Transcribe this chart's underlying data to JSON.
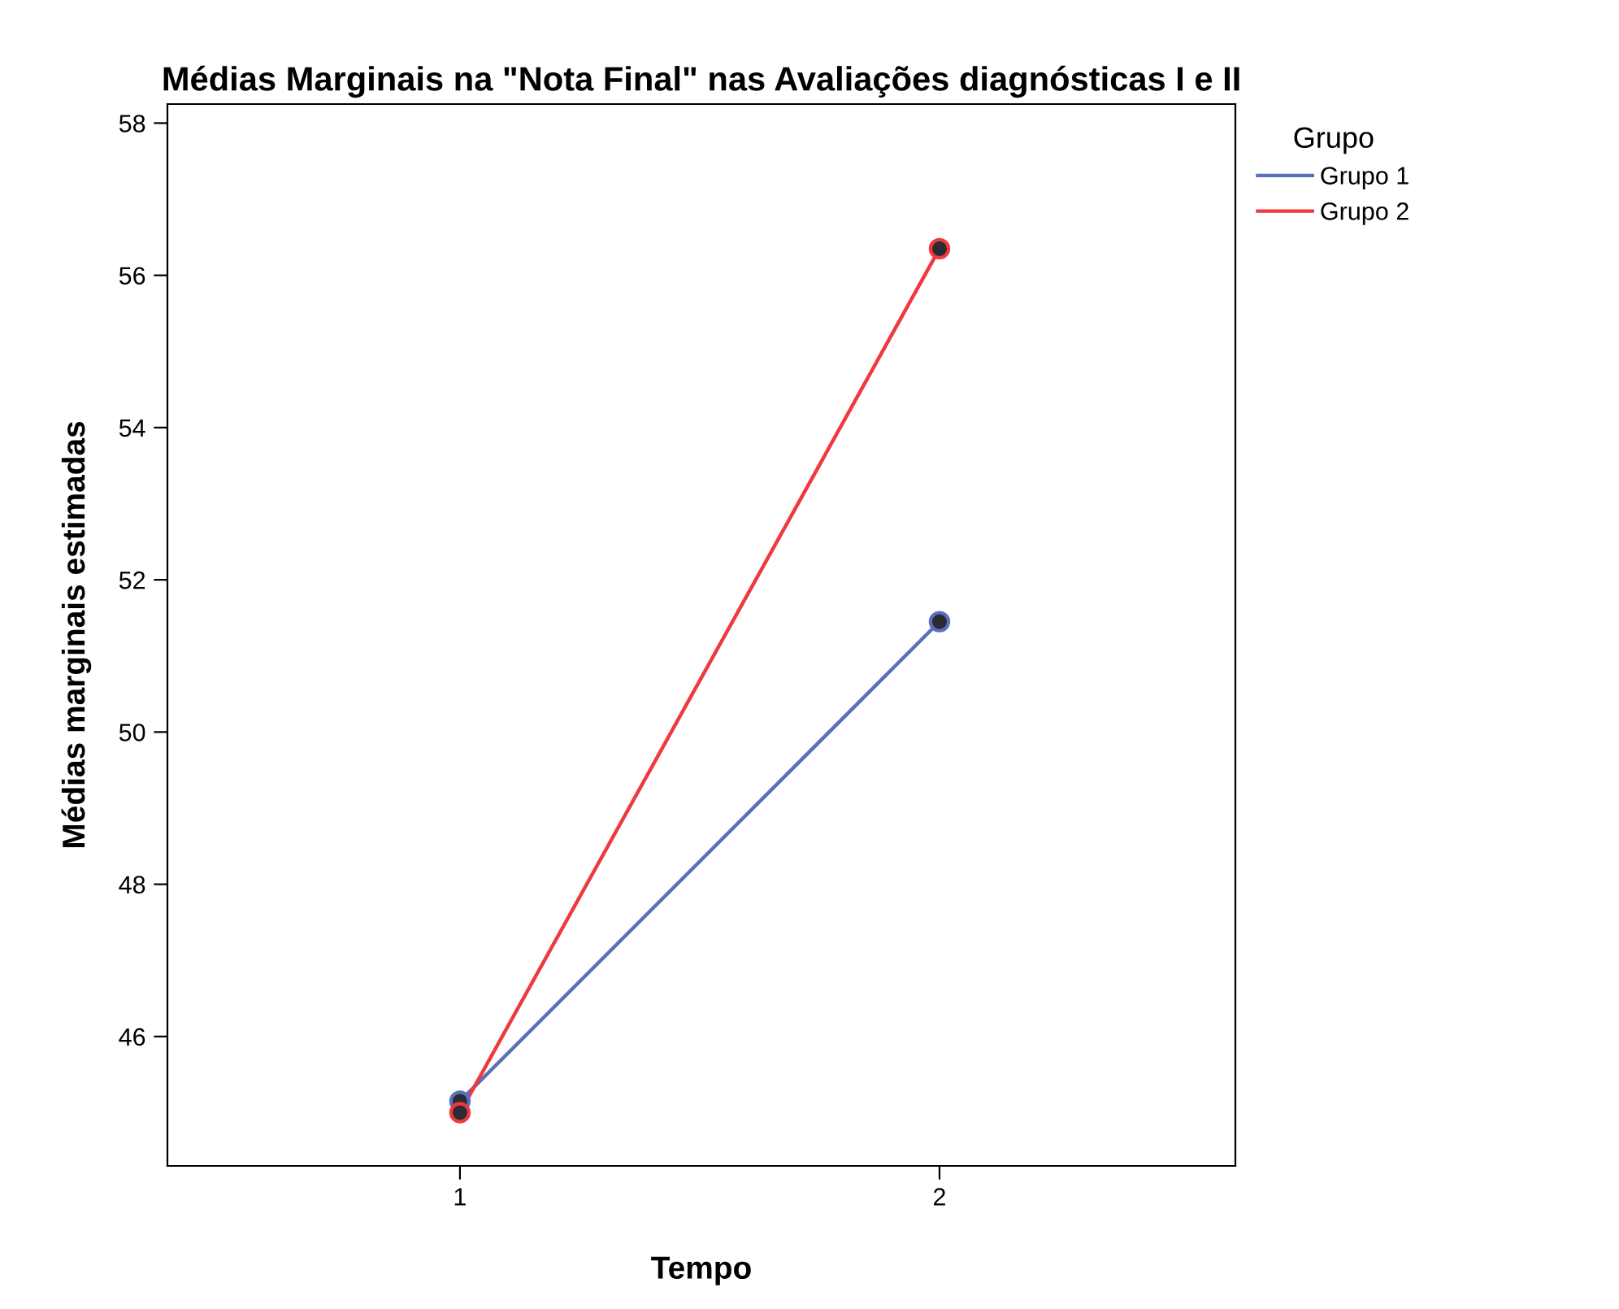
{
  "chart_data": {
    "type": "line",
    "title": "Médias Marginais na \"Nota Final\" nas Avaliações diagnósticas I e II",
    "xlabel": "Tempo",
    "ylabel": "Médias marginais estimadas",
    "legend_title": "Grupo",
    "categories": [
      "1",
      "2"
    ],
    "series": [
      {
        "name": "Grupo 1",
        "color": "#5b6fbf",
        "values": [
          45.15,
          51.45
        ]
      },
      {
        "name": "Grupo 2",
        "color": "#f0393c",
        "values": [
          45.0,
          56.35
        ]
      }
    ],
    "ylim": [
      44.3,
      58.25
    ],
    "yticks": [
      46,
      48,
      50,
      52,
      54,
      56,
      58
    ],
    "marker": "circle",
    "legend": "top right",
    "grid": false
  }
}
